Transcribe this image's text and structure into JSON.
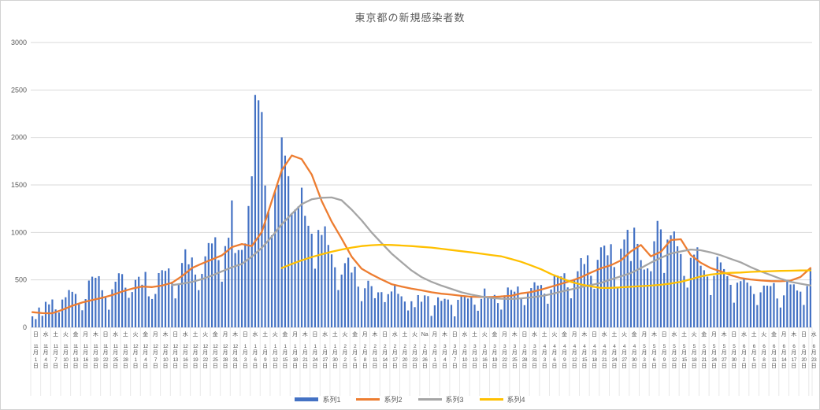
{
  "chart_data": {
    "type": "combo",
    "title": "東京都の新規感染者数",
    "legend_position": "bottom",
    "grid": true,
    "y_axis": {
      "min": 0,
      "max": 3000,
      "step": 500,
      "ticks": [
        "0",
        "500",
        "1000",
        "1500",
        "2000",
        "2500",
        "3000"
      ]
    },
    "x_axis": {
      "start_date_label": "11月1日",
      "end_date_label": "6月23日",
      "label_interval_days": 3,
      "month_suffix": "月",
      "day_suffix": "日",
      "labels": [
        [
          "日",
          11,
          1
        ],
        [
          "水",
          11,
          4
        ],
        [
          "土",
          11,
          7
        ],
        [
          "火",
          11,
          10
        ],
        [
          "金",
          11,
          13
        ],
        [
          "月",
          11,
          16
        ],
        [
          "木",
          11,
          19
        ],
        [
          "日",
          11,
          22
        ],
        [
          "水",
          11,
          25
        ],
        [
          "土",
          11,
          28
        ],
        [
          "火",
          12,
          1
        ],
        [
          "金",
          12,
          4
        ],
        [
          "月",
          12,
          7
        ],
        [
          "木",
          12,
          10
        ],
        [
          "日",
          12,
          13
        ],
        [
          "水",
          12,
          16
        ],
        [
          "土",
          12,
          19
        ],
        [
          "火",
          12,
          22
        ],
        [
          "金",
          12,
          25
        ],
        [
          "月",
          12,
          28
        ],
        [
          "木",
          12,
          31
        ],
        [
          "日",
          1,
          3
        ],
        [
          "水",
          1,
          6
        ],
        [
          "土",
          1,
          9
        ],
        [
          "火",
          1,
          12
        ],
        [
          "金",
          1,
          15
        ],
        [
          "月",
          1,
          18
        ],
        [
          "木",
          1,
          21
        ],
        [
          "日",
          1,
          24
        ],
        [
          "水",
          1,
          27
        ],
        [
          "土",
          1,
          30
        ],
        [
          "火",
          2,
          2
        ],
        [
          "金",
          2,
          5
        ],
        [
          "月",
          2,
          8
        ],
        [
          "木",
          2,
          11
        ],
        [
          "日",
          2,
          14
        ],
        [
          "水",
          2,
          17
        ],
        [
          "土",
          2,
          20
        ],
        [
          "火",
          2,
          23
        ],
        [
          "Na",
          2,
          26
        ],
        [
          "月",
          3,
          1
        ],
        [
          "木",
          3,
          4
        ],
        [
          "日",
          3,
          7
        ],
        [
          "水",
          3,
          10
        ],
        [
          "土",
          3,
          13
        ],
        [
          "火",
          3,
          16
        ],
        [
          "金",
          3,
          19
        ],
        [
          "月",
          3,
          22
        ],
        [
          "木",
          3,
          25
        ],
        [
          "日",
          3,
          28
        ],
        [
          "水",
          3,
          31
        ],
        [
          "土",
          4,
          3
        ],
        [
          "火",
          4,
          6
        ],
        [
          "金",
          4,
          9
        ],
        [
          "月",
          4,
          12
        ],
        [
          "木",
          4,
          15
        ],
        [
          "日",
          4,
          18
        ],
        [
          "水",
          4,
          21
        ],
        [
          "土",
          4,
          24
        ],
        [
          "火",
          4,
          27
        ],
        [
          "金",
          4,
          30
        ],
        [
          "月",
          5,
          3
        ],
        [
          "木",
          5,
          6
        ],
        [
          "日",
          5,
          9
        ],
        [
          "水",
          5,
          12
        ],
        [
          "土",
          5,
          15
        ],
        [
          "火",
          5,
          18
        ],
        [
          "金",
          5,
          21
        ],
        [
          "月",
          5,
          24
        ],
        [
          "木",
          5,
          27
        ],
        [
          "日",
          5,
          30
        ],
        [
          "水",
          6,
          2
        ],
        [
          "土",
          6,
          5
        ],
        [
          "火",
          6,
          8
        ],
        [
          "金",
          6,
          11
        ],
        [
          "月",
          6,
          14
        ],
        [
          "木",
          6,
          17
        ],
        [
          "日",
          6,
          20
        ],
        [
          "水",
          6,
          23
        ]
      ]
    },
    "series": [
      {
        "name": "系列1",
        "type": "bar",
        "color": "#4472C4",
        "interval": "daily",
        "values": [
          116,
          87,
          209,
          122,
          269,
          242,
          294,
          189,
          157,
          293,
          317,
          393,
          374,
          352,
          255,
          180,
          298,
          493,
          534,
          522,
          539,
          391,
          314,
          186,
          401,
          481,
          570,
          561,
          418,
          311,
          372,
          500,
          533,
          449,
          584,
          327,
          299,
          352,
          572,
          602,
          595,
          621,
          480,
          305,
          460,
          678,
          822,
          664,
          736,
          556,
          392,
          563,
          748,
          888,
          884,
          949,
          708,
          481,
          856,
          944,
          1337,
          783,
          814,
          816,
          884,
          1278,
          1591,
          2447,
          2392,
          2268,
          1494,
          1219,
          970,
          1433,
          1502,
          2001,
          1809,
          1592,
          1204,
          1240,
          1274,
          1471,
          1175,
          1070,
          986,
          618,
          1026,
          973,
          1064,
          868,
          769,
          633,
          393,
          556,
          676,
          734,
          577,
          639,
          429,
          276,
          412,
          491,
          434,
          307,
          369,
          371,
          266,
          350,
          378,
          445,
          353,
          327,
          272,
          178,
          275,
          213,
          340,
          270,
          337,
          329,
          121,
          232,
          316,
          279,
          301,
          293,
          237,
          116,
          290,
          340,
          335,
          304,
          330,
          239,
          175,
          300,
          409,
          323,
          303,
          342,
          256,
          187,
          337,
          420,
          394,
          376,
          430,
          313,
          234,
          364,
          414,
          475,
          440,
          446,
          355,
          249,
          399,
          555,
          545,
          537,
          570,
          421,
          306,
          510,
          591,
          729,
          667,
          759,
          543,
          405,
          711,
          843,
          861,
          759,
          876,
          635,
          425,
          828,
          925,
          1027,
          698,
          1050,
          879,
          708,
          609,
          621,
          591,
          907,
          1121,
          1032,
          573,
          925,
          969,
          1010,
          854,
          772,
          542,
          419,
          732,
          766,
          843,
          649,
          602,
          535,
          340,
          542,
          743,
          684,
          614,
          539,
          448,
          260,
          471,
          487,
          508,
          472,
          436,
          351,
          235,
          369,
          440,
          439,
          435,
          467,
          304,
          209,
          337,
          501,
          452,
          453,
          388,
          376,
          236,
          435,
          619
        ]
      },
      {
        "name": "系列2",
        "type": "line",
        "color": "#ED7D31",
        "interval": "every-3-days",
        "values": [
          160,
          150,
          148,
          185,
          228,
          262,
          288,
          312,
          340,
          378,
          408,
          430,
          424,
          440,
          470,
          540,
          625,
          672,
          715,
          758,
          845,
          878,
          856,
          1005,
          1330,
          1655,
          1810,
          1772,
          1610,
          1330,
          1115,
          935,
          745,
          618,
          558,
          505,
          455,
          430,
          408,
          390,
          370,
          355,
          345,
          332,
          322,
          320,
          320,
          326,
          332,
          358,
          372,
          398,
          428,
          458,
          490,
          528,
          578,
          622,
          655,
          705,
          800,
          868,
          748,
          795,
          920,
          928,
          762,
          680,
          625,
          590,
          550,
          520,
          505,
          495,
          487,
          486,
          492,
          530,
          625
        ]
      },
      {
        "name": "系列3",
        "type": "line",
        "color": "#A5A5A5",
        "interval": "every-3-days",
        "values": [
          null,
          null,
          null,
          null,
          null,
          null,
          null,
          null,
          null,
          null,
          null,
          null,
          null,
          null,
          445,
          460,
          478,
          508,
          545,
          590,
          632,
          668,
          745,
          838,
          955,
          1085,
          1195,
          1298,
          1348,
          1365,
          1368,
          1338,
          1240,
          1128,
          1000,
          888,
          778,
          688,
          600,
          530,
          480,
          440,
          405,
          370,
          345,
          325,
          310,
          302,
          300,
          306,
          316,
          330,
          350,
          376,
          400,
          424,
          446,
          468,
          505,
          538,
          572,
          625,
          682,
          732,
          778,
          800,
          820,
          812,
          790,
          760,
          722,
          685,
          635,
          590,
          552,
          512,
          480,
          460,
          442
        ]
      },
      {
        "name": "系列4",
        "type": "line",
        "color": "#FFC000",
        "interval": "every-3-days",
        "values": [
          null,
          null,
          null,
          null,
          null,
          null,
          null,
          null,
          null,
          null,
          null,
          null,
          null,
          null,
          null,
          null,
          null,
          null,
          null,
          null,
          null,
          null,
          null,
          null,
          null,
          625,
          668,
          706,
          740,
          770,
          796,
          820,
          840,
          856,
          865,
          870,
          868,
          862,
          856,
          848,
          840,
          828,
          815,
          802,
          790,
          776,
          762,
          748,
          720,
          690,
          652,
          612,
          562,
          520,
          478,
          452,
          432,
          415,
          416,
          422,
          428,
          434,
          440,
          448,
          462,
          480,
          506,
          536,
          556,
          568,
          574,
          578,
          584,
          588,
          592,
          595,
          597,
          599,
          600
        ]
      }
    ]
  },
  "style": {
    "gridline_color": "#D9D9D9",
    "axis_label_color": "#595959",
    "category_separator_color": "#E8E8E8",
    "background": "#FFFFFF"
  }
}
